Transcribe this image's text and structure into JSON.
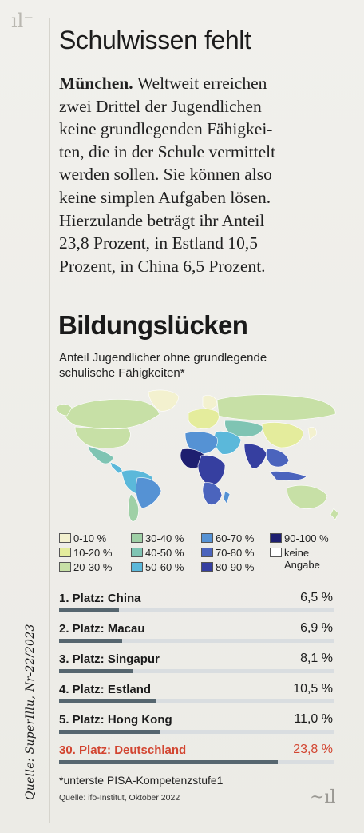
{
  "article": {
    "headline": "Schulwissen fehlt",
    "dateline": "München.",
    "lines": [
      "Weltweit erreichen",
      "zwei Drittel der Jugendlichen",
      "keine grundlegenden Fähigkei-",
      "ten, die in der Schule vermittelt",
      "werden sollen. Sie können also",
      "keine simplen Aufgaben lösen.",
      "Hierzulande beträgt ihr Anteil",
      "23,8 Prozent, in Estland 10,5",
      "Prozent, in China 6,5 Prozent."
    ]
  },
  "graphic": {
    "title": "Bildungslücken",
    "subtitle_lines": [
      "Anteil Jugendlicher ohne grundlegende",
      "schulische Fähigkeiten*"
    ],
    "legend": [
      {
        "label": "0-10 %",
        "color": "#f3f1cf"
      },
      {
        "label": "10-20 %",
        "color": "#e4ec9c"
      },
      {
        "label": "20-30 %",
        "color": "#c7e0a6"
      },
      {
        "label": "30-40 %",
        "color": "#9fd0a6"
      },
      {
        "label": "40-50 %",
        "color": "#7fc4b3"
      },
      {
        "label": "50-60 %",
        "color": "#5bb8da"
      },
      {
        "label": "60-70 %",
        "color": "#5592d4"
      },
      {
        "label": "70-80 %",
        "color": "#4b64bd"
      },
      {
        "label": "80-90 %",
        "color": "#363fa0"
      },
      {
        "label": "90-100 %",
        "color": "#1e1f70"
      },
      {
        "label_line1": "keine",
        "label_line2": "Angabe",
        "color": "#ffffff"
      }
    ]
  },
  "chart_data": {
    "type": "bar",
    "categories": [
      "1. Platz: China",
      "2. Platz: Macau",
      "3. Platz: Singapur",
      "4. Platz: Estland",
      "5. Platz: Hong Kong",
      "30. Platz: Deutschland"
    ],
    "values": [
      6.5,
      6.9,
      8.1,
      10.5,
      11.0,
      23.8
    ],
    "value_labels": [
      "6,5 %",
      "6,9 %",
      "8,1 %",
      "10,5 %",
      "11,0 %",
      "23,8 %"
    ],
    "highlight": "30. Platz: Deutschland",
    "highlight_color": "#d24530",
    "bar_color": "#56666f",
    "unit": "%"
  },
  "footnote": "*unterste PISA-Kompetenzstufe1",
  "source": "Quelle: ifo-Institut, Oktober 2022",
  "handwritten_note": "Quelle: SuperIllu, Nr-22/2023"
}
